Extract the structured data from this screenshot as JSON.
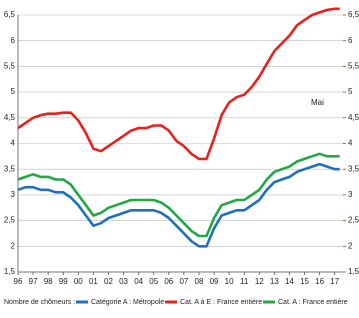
{
  "chart_data": {
    "type": "line",
    "annotations": [
      "Mai"
    ],
    "legend_title": "Nombre de chômeurs :",
    "x": [
      1996,
      1996.5,
      1997,
      1997.5,
      1998,
      1998.5,
      1999,
      1999.5,
      2000,
      2000.5,
      2001,
      2001.5,
      2002,
      2002.5,
      2003,
      2003.5,
      2004,
      2004.5,
      2005,
      2005.5,
      2006,
      2006.5,
      2007,
      2007.5,
      2008,
      2008.5,
      2009,
      2009.5,
      2010,
      2010.5,
      2011,
      2011.5,
      2012,
      2012.5,
      2013,
      2013.5,
      2014,
      2014.5,
      2015,
      2015.5,
      2016,
      2016.5,
      2017,
      2017.33
    ],
    "series": [
      {
        "name": "Catégorie A : Métropole",
        "color": "#1f6fbf",
        "values": [
          3.1,
          3.15,
          3.15,
          3.1,
          3.1,
          3.05,
          3.05,
          2.95,
          2.8,
          2.6,
          2.4,
          2.45,
          2.55,
          2.6,
          2.65,
          2.7,
          2.7,
          2.7,
          2.7,
          2.65,
          2.55,
          2.4,
          2.25,
          2.1,
          2.0,
          2.0,
          2.35,
          2.6,
          2.65,
          2.7,
          2.7,
          2.8,
          2.9,
          3.1,
          3.25,
          3.3,
          3.35,
          3.45,
          3.5,
          3.55,
          3.6,
          3.55,
          3.5,
          3.5
        ]
      },
      {
        "name": "Cat. A à E : France entière",
        "color": "#e8211d",
        "axis": "y2",
        "values": [
          4.3,
          4.4,
          4.5,
          4.55,
          4.58,
          4.58,
          4.6,
          4.6,
          4.45,
          4.2,
          3.9,
          3.85,
          3.95,
          4.05,
          4.15,
          4.25,
          4.3,
          4.3,
          4.35,
          4.35,
          4.25,
          4.05,
          3.95,
          3.8,
          3.7,
          3.7,
          4.1,
          4.55,
          4.8,
          4.9,
          4.95,
          5.1,
          5.3,
          5.55,
          5.8,
          5.95,
          6.1,
          6.3,
          6.4,
          6.5,
          6.55,
          6.6,
          6.62,
          6.62
        ]
      },
      {
        "name": "Cat. A : France entière",
        "color": "#22a845",
        "values": [
          3.3,
          3.35,
          3.4,
          3.35,
          3.35,
          3.3,
          3.3,
          3.2,
          3.0,
          2.8,
          2.6,
          2.65,
          2.75,
          2.8,
          2.85,
          2.9,
          2.9,
          2.9,
          2.9,
          2.85,
          2.75,
          2.6,
          2.45,
          2.3,
          2.2,
          2.2,
          2.55,
          2.8,
          2.85,
          2.9,
          2.9,
          3.0,
          3.1,
          3.3,
          3.45,
          3.5,
          3.55,
          3.65,
          3.7,
          3.75,
          3.8,
          3.75,
          3.75,
          3.75
        ]
      }
    ],
    "xlim": [
      1996,
      2017.55
    ],
    "xticks": [
      {
        "value": 1996,
        "label": "96"
      },
      {
        "value": 1997,
        "label": "97"
      },
      {
        "value": 1998,
        "label": "98"
      },
      {
        "value": 1999,
        "label": "99"
      },
      {
        "value": 2000,
        "label": "00"
      },
      {
        "value": 2001,
        "label": "01"
      },
      {
        "value": 2002,
        "label": "02"
      },
      {
        "value": 2003,
        "label": "03"
      },
      {
        "value": 2004,
        "label": "04"
      },
      {
        "value": 2005,
        "label": "05"
      },
      {
        "value": 2006,
        "label": "06"
      },
      {
        "value": 2007,
        "label": "07"
      },
      {
        "value": 2008,
        "label": "08"
      },
      {
        "value": 2009,
        "label": "09"
      },
      {
        "value": 2010,
        "label": "10"
      },
      {
        "value": 2011,
        "label": "11"
      },
      {
        "value": 2012,
        "label": "12"
      },
      {
        "value": 2013,
        "label": "13"
      },
      {
        "value": 2014,
        "label": "14"
      },
      {
        "value": 2015,
        "label": "15"
      },
      {
        "value": 2016,
        "label": "16"
      },
      {
        "value": 2017,
        "label": "17"
      }
    ],
    "ylim": [
      1.5,
      6.5
    ],
    "yticks": [
      {
        "value": 1.5,
        "label": "1,5"
      },
      2,
      {
        "value": 2.5,
        "label": "2,5"
      },
      3,
      {
        "value": 3.5,
        "label": "3,5"
      },
      4,
      {
        "value": 4.5,
        "label": "4,5"
      },
      5,
      {
        "value": 5.5,
        "label": "5,5"
      },
      6,
      {
        "value": 6.5,
        "label": "6,5"
      }
    ],
    "y2lim": [
      1.5,
      6.5
    ],
    "y2ticks": [
      {
        "value": 1.5,
        "label": "1,5"
      },
      2,
      {
        "value": 2.5,
        "label": "2,5"
      },
      3,
      {
        "value": 3.5,
        "label": "3,5"
      },
      4,
      {
        "value": 4.5,
        "label": "4,5"
      },
      5,
      {
        "value": 5.5,
        "label": "5,5"
      },
      6,
      {
        "value": 6.5,
        "label": "6,5"
      }
    ],
    "y2color": "#e8211d",
    "grid": true
  }
}
